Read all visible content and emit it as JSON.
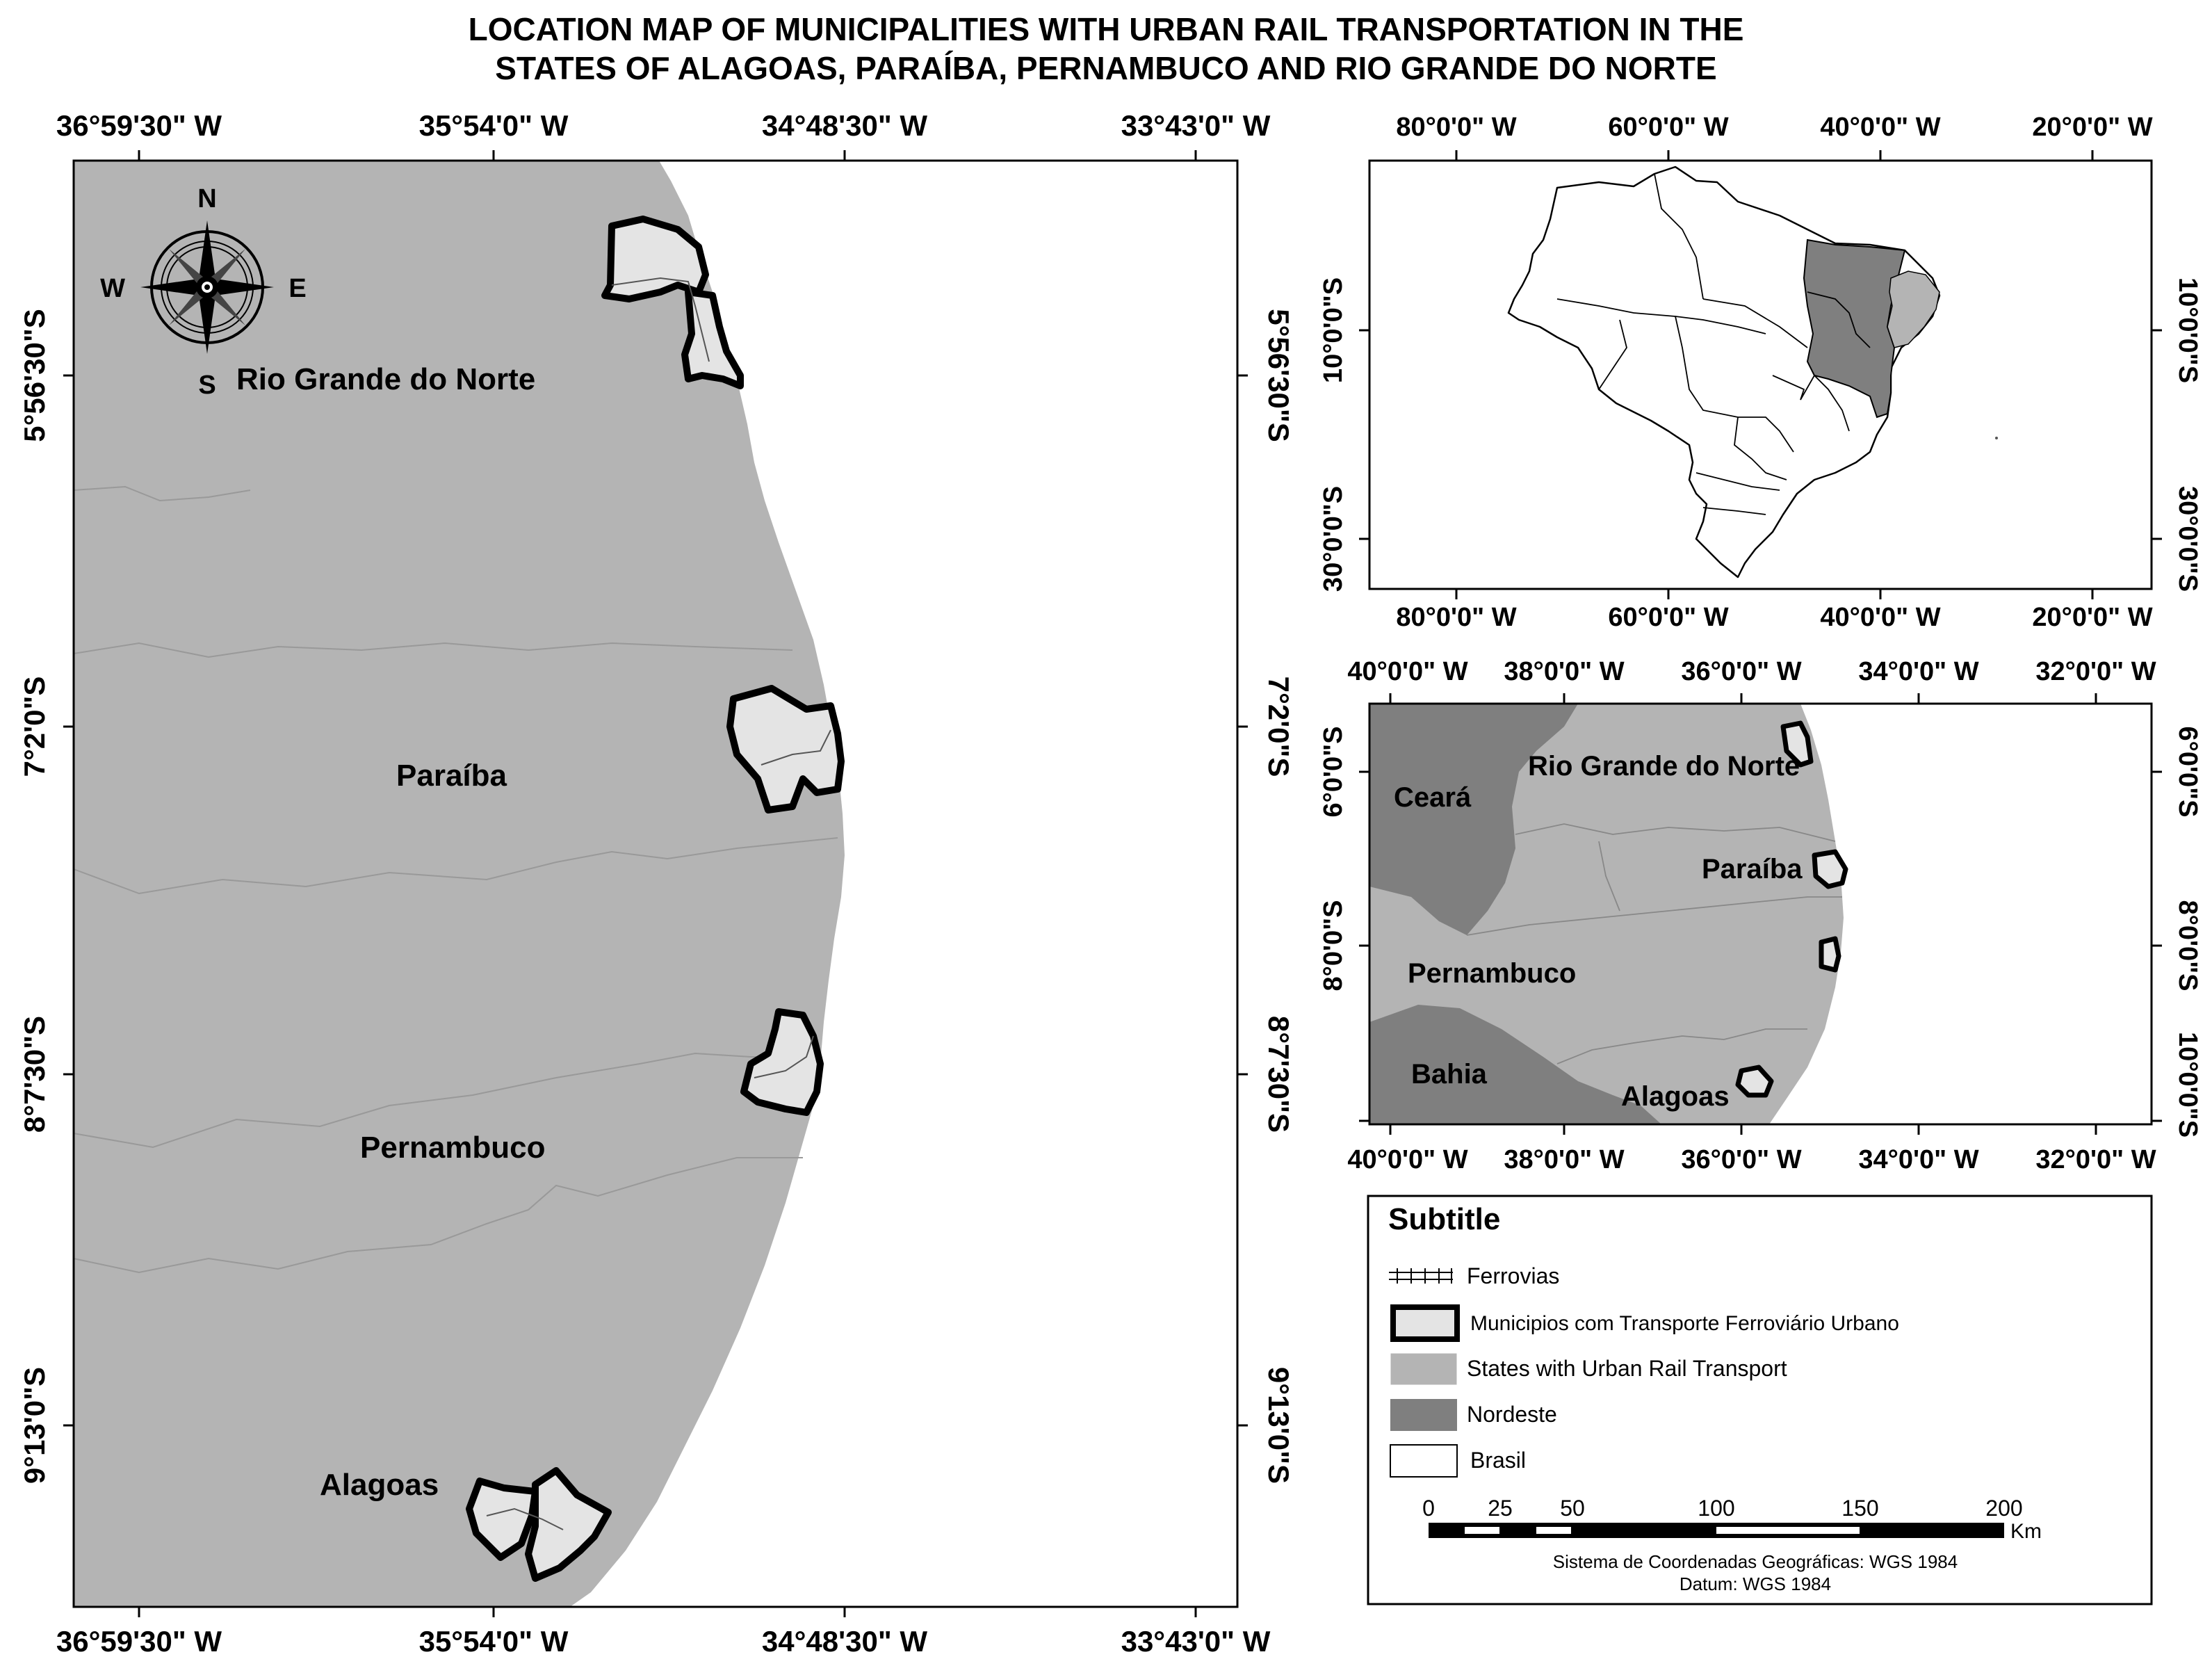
{
  "title": {
    "line1": "LOCATION MAP OF MUNICIPALITIES WITH URBAN RAIL TRANSPORTATION IN THE",
    "line2": "STATES OF ALAGOAS, PARAÍBA, PERNAMBUCO AND RIO GRANDE DO NORTE"
  },
  "colors": {
    "states_urban_rail": "#b4b4b4",
    "nordeste": "#7f7f7f",
    "municipalities": "#e4e4e4",
    "brasil": "#ffffff",
    "boundary": "#000000"
  },
  "main_map": {
    "lon_ticks": [
      "36°59'30\" W",
      "35°54'0\" W",
      "34°48'30\" W",
      "33°43'0\" W"
    ],
    "lat_ticks": [
      "5°56'30\"S",
      "7°2'0\"S",
      "8°7'30\"S",
      "9°13'0\"S"
    ],
    "compass": {
      "n": "N",
      "s": "S",
      "e": "E",
      "w": "W"
    },
    "states": {
      "rio_grande_do_norte": "Rio Grande do Norte",
      "paraiba": "Paraíba",
      "pernambuco": "Pernambuco",
      "alagoas": "Alagoas"
    }
  },
  "brazil_map": {
    "lon_ticks": [
      "80°0'0\" W",
      "60°0'0\" W",
      "40°0'0\" W",
      "20°0'0\" W"
    ],
    "lat_ticks": [
      "10°0'0\"S",
      "30°0'0\"S"
    ]
  },
  "region_map": {
    "lon_ticks": [
      "40°0'0\" W",
      "38°0'0\" W",
      "36°0'0\" W",
      "34°0'0\" W",
      "32°0'0\" W"
    ],
    "lat_ticks": [
      "6°0'0\"S",
      "8°0'0\"S",
      "10°0'0\"S"
    ],
    "labels": {
      "ceara": "Ceará",
      "rio_grande_do_norte": "Rio Grande do Norte",
      "paraiba": "Paraíba",
      "pernambuco": "Pernambuco",
      "bahia": "Bahia",
      "alagoas": "Alagoas"
    }
  },
  "legend": {
    "title": "Subtitle",
    "items": {
      "ferrovias": "Ferrovias",
      "municipios": "Municipios com Transporte Ferroviário Urbano",
      "states": "States with Urban Rail Transport",
      "nordeste": "Nordeste",
      "brasil": "Brasil"
    },
    "scale": {
      "ticks": [
        "0",
        "25",
        "50",
        "100",
        "150",
        "200"
      ],
      "unit": "Km"
    },
    "crs": "Sistema de Coordenadas Geográficas: WGS 1984",
    "datum": "Datum: WGS 1984"
  }
}
